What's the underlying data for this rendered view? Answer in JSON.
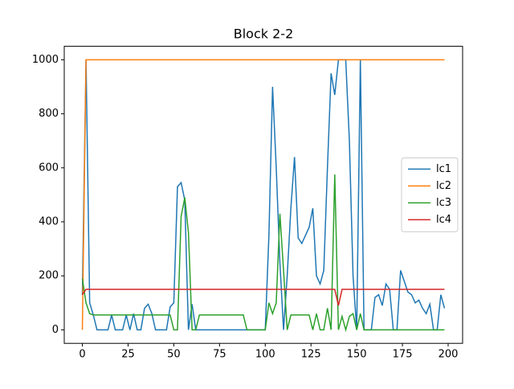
{
  "chart_data": {
    "type": "line",
    "title": "Block 2-2",
    "x": [
      0,
      2,
      4,
      6,
      8,
      10,
      12,
      14,
      16,
      18,
      20,
      22,
      24,
      26,
      28,
      30,
      32,
      34,
      36,
      38,
      40,
      42,
      44,
      46,
      48,
      50,
      52,
      54,
      56,
      58,
      60,
      62,
      64,
      66,
      68,
      70,
      72,
      74,
      76,
      78,
      80,
      82,
      84,
      86,
      88,
      90,
      92,
      94,
      96,
      98,
      100,
      102,
      104,
      106,
      108,
      110,
      112,
      114,
      116,
      118,
      120,
      122,
      124,
      126,
      128,
      130,
      132,
      134,
      136,
      138,
      140,
      142,
      144,
      146,
      148,
      150,
      152,
      154,
      156,
      158,
      160,
      162,
      164,
      166,
      168,
      170,
      172,
      174,
      176,
      178,
      180,
      182,
      184,
      186,
      188,
      190,
      192,
      194,
      196,
      198
    ],
    "series": [
      {
        "name": "lc1",
        "color": "#1f77b4",
        "values": [
          130,
          1000,
          100,
          55,
          0,
          0,
          0,
          0,
          55,
          0,
          0,
          0,
          55,
          0,
          60,
          0,
          0,
          80,
          95,
          60,
          0,
          0,
          0,
          0,
          85,
          100,
          530,
          545,
          480,
          0,
          95,
          0,
          0,
          0,
          0,
          0,
          0,
          0,
          0,
          0,
          0,
          0,
          0,
          0,
          0,
          0,
          0,
          0,
          0,
          0,
          0,
          350,
          900,
          600,
          250,
          0,
          200,
          450,
          640,
          340,
          320,
          350,
          380,
          450,
          200,
          170,
          220,
          600,
          950,
          870,
          1000,
          1000,
          1000,
          700,
          200,
          0,
          1000,
          0,
          0,
          0,
          120,
          130,
          90,
          170,
          150,
          0,
          0,
          220,
          180,
          140,
          130,
          100,
          110,
          80,
          60,
          95,
          0,
          0,
          130,
          80
        ]
      },
      {
        "name": "lc2",
        "color": "#ff7f0e",
        "values": [
          0,
          1000,
          1000,
          1000,
          1000,
          1000,
          1000,
          1000,
          1000,
          1000,
          1000,
          1000,
          1000,
          1000,
          1000,
          1000,
          1000,
          1000,
          1000,
          1000,
          1000,
          1000,
          1000,
          1000,
          1000,
          1000,
          1000,
          1000,
          1000,
          1000,
          1000,
          1000,
          1000,
          1000,
          1000,
          1000,
          1000,
          1000,
          1000,
          1000,
          1000,
          1000,
          1000,
          1000,
          1000,
          1000,
          1000,
          1000,
          1000,
          1000,
          1000,
          1000,
          1000,
          1000,
          1000,
          1000,
          1000,
          1000,
          1000,
          1000,
          1000,
          1000,
          1000,
          1000,
          1000,
          1000,
          1000,
          1000,
          1000,
          1000,
          1000,
          1000,
          1000,
          1000,
          1000,
          1000,
          1000,
          1000,
          1000,
          1000,
          1000,
          1000,
          1000,
          1000,
          1000,
          1000,
          1000,
          1000,
          1000,
          1000,
          1000,
          1000,
          1000,
          1000,
          1000,
          1000,
          1000,
          1000,
          1000,
          1000
        ]
      },
      {
        "name": "lc3",
        "color": "#2ca02c",
        "values": [
          190,
          100,
          60,
          55,
          55,
          55,
          55,
          55,
          55,
          55,
          55,
          55,
          55,
          55,
          55,
          55,
          55,
          55,
          55,
          55,
          55,
          55,
          55,
          55,
          55,
          0,
          0,
          420,
          490,
          360,
          0,
          0,
          55,
          55,
          55,
          55,
          55,
          55,
          55,
          55,
          55,
          55,
          55,
          55,
          55,
          0,
          0,
          0,
          0,
          0,
          0,
          100,
          60,
          100,
          430,
          220,
          0,
          55,
          55,
          55,
          55,
          55,
          55,
          0,
          60,
          0,
          0,
          80,
          0,
          575,
          0,
          50,
          0,
          50,
          60,
          0,
          60,
          0,
          0,
          0,
          0,
          0,
          0,
          0,
          0,
          0,
          0,
          0,
          0,
          0,
          0,
          0,
          0,
          0,
          0,
          0,
          0,
          0,
          0,
          0
        ]
      },
      {
        "name": "lc4",
        "color": "#d62728",
        "values": [
          130,
          150,
          150,
          150,
          150,
          150,
          150,
          150,
          150,
          150,
          150,
          150,
          150,
          150,
          150,
          150,
          150,
          150,
          150,
          150,
          150,
          150,
          150,
          150,
          150,
          150,
          150,
          150,
          150,
          150,
          150,
          150,
          150,
          150,
          150,
          150,
          150,
          150,
          150,
          150,
          150,
          150,
          150,
          150,
          150,
          150,
          150,
          150,
          150,
          150,
          150,
          150,
          150,
          150,
          150,
          150,
          150,
          150,
          150,
          150,
          150,
          150,
          150,
          150,
          150,
          150,
          150,
          150,
          150,
          150,
          90,
          150,
          150,
          150,
          150,
          150,
          150,
          150,
          150,
          150,
          150,
          150,
          150,
          150,
          150,
          150,
          150,
          150,
          150,
          150,
          150,
          150,
          150,
          150,
          150,
          150,
          150,
          150,
          150,
          150
        ]
      }
    ],
    "xlim": [
      -9.9,
      207.9
    ],
    "ylim": [
      -50,
      1050
    ],
    "xticks": [
      0,
      25,
      50,
      75,
      100,
      125,
      150,
      175,
      200
    ],
    "yticks": [
      0,
      200,
      400,
      600,
      800,
      1000
    ],
    "legend": "center right"
  }
}
